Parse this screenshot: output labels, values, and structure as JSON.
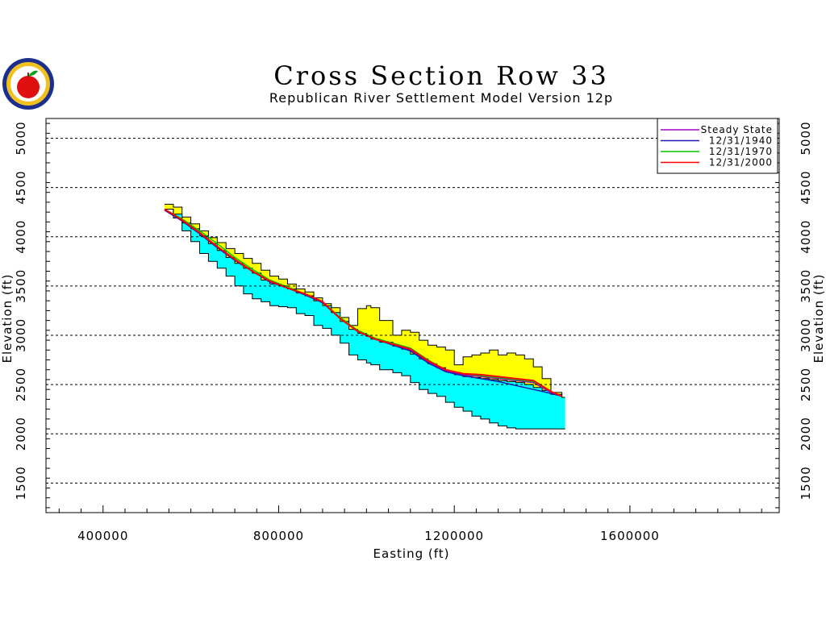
{
  "chart_data": {
    "type": "area",
    "title": "Cross Section Row 33",
    "subtitle": "Republican River Settlement Model Version 12p",
    "xlabel": "Easting (ft)",
    "ylabel": "Elevation (ft)",
    "xlim": [
      270000,
      1940000
    ],
    "ylim": [
      1200,
      5200
    ],
    "xticks": [
      400000,
      800000,
      1200000,
      1600000
    ],
    "yticks": [
      1500,
      2000,
      2500,
      3000,
      3500,
      4000,
      4500,
      5000
    ],
    "grid": "horizontal dashed",
    "legend_position": "top-right",
    "layers": [
      {
        "color": "#ffff00",
        "x": [
          540000,
          560000,
          580000,
          600000,
          620000,
          640000,
          660000,
          680000,
          700000,
          720000,
          740000,
          760000,
          780000,
          800000,
          820000,
          840000,
          860000,
          880000,
          900000,
          920000,
          940000,
          960000,
          980000,
          1000000,
          1010000,
          1030000,
          1060000,
          1080000,
          1100000,
          1120000,
          1140000,
          1160000,
          1180000,
          1200000,
          1220000,
          1240000,
          1260000,
          1280000,
          1300000,
          1320000,
          1340000,
          1360000,
          1380000,
          1400000,
          1420000,
          1445000
        ],
        "top": [
          4330,
          4300,
          4200,
          4130,
          4060,
          3990,
          3940,
          3880,
          3830,
          3780,
          3730,
          3660,
          3600,
          3570,
          3520,
          3470,
          3440,
          3380,
          3320,
          3280,
          3180,
          3100,
          3270,
          3300,
          3280,
          3150,
          3000,
          3050,
          3030,
          2950,
          2900,
          2880,
          2850,
          2700,
          2780,
          2800,
          2820,
          2850,
          2800,
          2820,
          2800,
          2760,
          2680,
          2560,
          2420,
          2370
        ],
        "bottom": [
          4280,
          4230,
          4140,
          4080,
          4010,
          3930,
          3860,
          3790,
          3730,
          3680,
          3630,
          3560,
          3520,
          3500,
          3470,
          3430,
          3400,
          3350,
          3300,
          3230,
          3140,
          3060,
          3020,
          2990,
          2960,
          2930,
          2890,
          2860,
          2810,
          2760,
          2710,
          2670,
          2630,
          2600,
          2580,
          2570,
          2560,
          2550,
          2540,
          2530,
          2520,
          2500,
          2470,
          2440,
          2400,
          2370
        ]
      },
      {
        "color": "#00ffff",
        "x": [
          540000,
          560000,
          580000,
          600000,
          620000,
          640000,
          660000,
          680000,
          700000,
          720000,
          740000,
          760000,
          780000,
          800000,
          820000,
          840000,
          860000,
          880000,
          900000,
          920000,
          940000,
          960000,
          980000,
          1000000,
          1010000,
          1030000,
          1060000,
          1080000,
          1100000,
          1120000,
          1140000,
          1160000,
          1180000,
          1200000,
          1220000,
          1240000,
          1260000,
          1280000,
          1300000,
          1320000,
          1340000,
          1360000,
          1380000,
          1400000,
          1420000,
          1445000
        ],
        "top": [
          4280,
          4230,
          4140,
          4080,
          4010,
          3930,
          3860,
          3790,
          3730,
          3680,
          3630,
          3560,
          3520,
          3500,
          3470,
          3430,
          3400,
          3350,
          3300,
          3230,
          3140,
          3060,
          3020,
          2990,
          2960,
          2930,
          2890,
          2860,
          2810,
          2760,
          2710,
          2670,
          2630,
          2600,
          2580,
          2570,
          2560,
          2550,
          2540,
          2530,
          2520,
          2500,
          2470,
          2440,
          2400,
          2370
        ],
        "bottom": [
          4280,
          4190,
          4060,
          3950,
          3830,
          3750,
          3680,
          3600,
          3500,
          3420,
          3370,
          3340,
          3300,
          3290,
          3280,
          3220,
          3200,
          3100,
          3070,
          3000,
          2920,
          2800,
          2750,
          2720,
          2700,
          2650,
          2620,
          2590,
          2520,
          2450,
          2410,
          2380,
          2320,
          2270,
          2230,
          2180,
          2150,
          2110,
          2080,
          2060,
          2050,
          2050,
          2050,
          2050,
          2050,
          2050
        ]
      }
    ],
    "series": [
      {
        "name": "Steady State",
        "color": "#a000c8",
        "x": [
          540000,
          580000,
          620000,
          660000,
          700000,
          740000,
          780000,
          820000,
          860000,
          900000,
          940000,
          980000,
          1020000,
          1060000,
          1100000,
          1140000,
          1180000,
          1220000,
          1260000,
          1300000,
          1340000,
          1380000,
          1420000,
          1445000
        ],
        "y": [
          4270,
          4160,
          4030,
          3890,
          3760,
          3650,
          3540,
          3480,
          3410,
          3330,
          3170,
          3040,
          2960,
          2910,
          2850,
          2730,
          2640,
          2600,
          2580,
          2560,
          2540,
          2520,
          2420,
          2380
        ]
      },
      {
        "name": "12/31/1940",
        "color": "#1a1ab4",
        "x": [
          540000,
          580000,
          620000,
          660000,
          700000,
          740000,
          780000,
          820000,
          860000,
          900000,
          940000,
          980000,
          1020000,
          1060000,
          1100000,
          1140000,
          1180000,
          1220000,
          1260000,
          1300000,
          1340000,
          1380000,
          1420000,
          1445000
        ],
        "y": [
          4270,
          4160,
          4030,
          3890,
          3760,
          3650,
          3540,
          3480,
          3410,
          3330,
          3170,
          3040,
          2960,
          2900,
          2840,
          2720,
          2630,
          2590,
          2560,
          2530,
          2490,
          2450,
          2410,
          2380
        ]
      },
      {
        "name": "12/31/1970",
        "color": "#00c800",
        "x": [
          540000,
          580000,
          620000,
          660000,
          700000,
          740000,
          780000,
          820000,
          860000,
          900000,
          940000,
          980000,
          1020000,
          1060000,
          1100000,
          1140000,
          1180000,
          1220000,
          1260000,
          1300000,
          1340000,
          1380000,
          1420000,
          1445000
        ],
        "y": [
          4280,
          4180,
          4060,
          3930,
          3790,
          3670,
          3560,
          3490,
          3420,
          3340,
          3180,
          3050,
          2970,
          2920,
          2870,
          2750,
          2650,
          2610,
          2590,
          2570,
          2550,
          2530,
          2430,
          2380
        ]
      },
      {
        "name": "12/31/2000",
        "color": "#ff0000",
        "x": [
          540000,
          580000,
          620000,
          660000,
          700000,
          740000,
          780000,
          820000,
          860000,
          900000,
          940000,
          980000,
          1020000,
          1060000,
          1100000,
          1140000,
          1180000,
          1220000,
          1260000,
          1300000,
          1340000,
          1380000,
          1420000,
          1445000
        ],
        "y": [
          4280,
          4170,
          4040,
          3900,
          3770,
          3650,
          3550,
          3480,
          3420,
          3340,
          3170,
          3040,
          2960,
          2910,
          2860,
          2740,
          2650,
          2610,
          2600,
          2580,
          2560,
          2540,
          2430,
          2380
        ]
      }
    ]
  }
}
